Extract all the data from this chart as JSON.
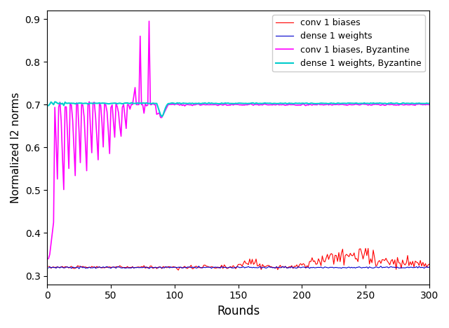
{
  "title": "",
  "xlabel": "Rounds",
  "ylabel": "Normalized l2 norms",
  "xlim": [
    0,
    300
  ],
  "ylim": [
    0.28,
    0.92
  ],
  "yticks": [
    0.3,
    0.4,
    0.5,
    0.6,
    0.7,
    0.8,
    0.9
  ],
  "xticks": [
    0,
    50,
    100,
    150,
    200,
    250,
    300
  ],
  "legend_labels": [
    "conv 1 biases",
    "dense 1 weights",
    "conv 1 biases, Byzantine",
    "dense 1 weights, Byzantine"
  ],
  "colors": {
    "conv1_biases": "#FF0000",
    "dense1_weights": "#0000CC",
    "conv1_biases_byz": "#FF00FF",
    "dense1_weights_byz": "#00CCCC"
  },
  "linewidths": {
    "conv1_biases": 0.8,
    "dense1_weights": 0.8,
    "conv1_biases_byz": 1.2,
    "dense1_weights_byz": 1.5
  },
  "n_rounds": 300,
  "seed": 42
}
